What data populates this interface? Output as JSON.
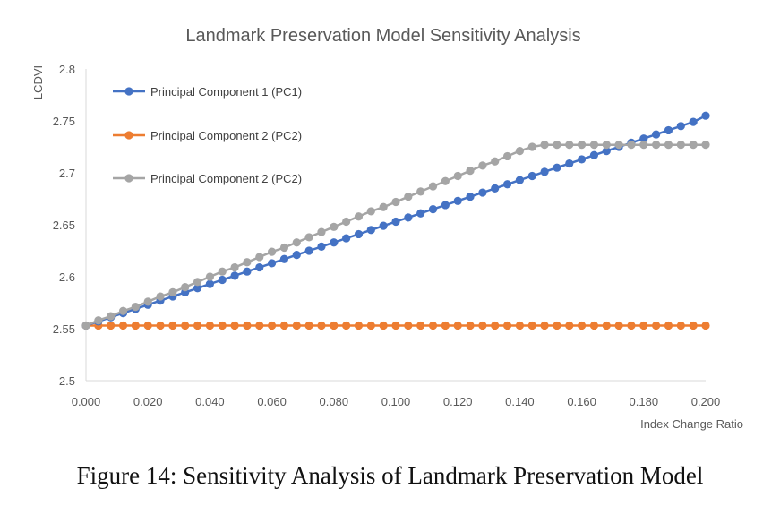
{
  "chart_data": {
    "type": "line",
    "title": "Landmark Preservation Model Sensitivity Analysis",
    "xlabel": "Index Change Ratio",
    "ylabel": "LCDVI",
    "xlim": [
      0,
      0.2
    ],
    "ylim": [
      2.5,
      2.8
    ],
    "xticks": [
      "0.000",
      "0.020",
      "0.040",
      "0.060",
      "0.080",
      "0.100",
      "0.120",
      "0.140",
      "0.160",
      "0.180",
      "0.200"
    ],
    "yticks": [
      "2.5",
      "2.55",
      "2.6",
      "2.65",
      "2.7",
      "2.75",
      "2.8"
    ],
    "grid": false,
    "legend": "top-left",
    "x": [
      0.0,
      0.004,
      0.008,
      0.012,
      0.016,
      0.02,
      0.024,
      0.028,
      0.032,
      0.036,
      0.04,
      0.044,
      0.048,
      0.052,
      0.056,
      0.06,
      0.064,
      0.068,
      0.072,
      0.076,
      0.08,
      0.084,
      0.088,
      0.092,
      0.096,
      0.1,
      0.104,
      0.108,
      0.112,
      0.116,
      0.12,
      0.124,
      0.128,
      0.132,
      0.136,
      0.14,
      0.144,
      0.148,
      0.152,
      0.156,
      0.16,
      0.164,
      0.168,
      0.172,
      0.176,
      0.18,
      0.184,
      0.188,
      0.192,
      0.196,
      0.2
    ],
    "series": [
      {
        "name": "Principal Component 1 (PC1)",
        "color": "#4472C4",
        "values": [
          2.553,
          2.557,
          2.561,
          2.565,
          2.569,
          2.573,
          2.577,
          2.581,
          2.585,
          2.589,
          2.593,
          2.597,
          2.601,
          2.605,
          2.609,
          2.613,
          2.617,
          2.621,
          2.625,
          2.629,
          2.633,
          2.637,
          2.641,
          2.645,
          2.649,
          2.653,
          2.657,
          2.661,
          2.665,
          2.669,
          2.673,
          2.677,
          2.681,
          2.685,
          2.689,
          2.693,
          2.697,
          2.701,
          2.705,
          2.709,
          2.713,
          2.717,
          2.721,
          2.725,
          2.729,
          2.733,
          2.737,
          2.741,
          2.745,
          2.749,
          2.755
        ]
      },
      {
        "name": "Principal Component 2 (PC2)",
        "color": "#ED7D31",
        "values": [
          2.553,
          2.553,
          2.553,
          2.553,
          2.553,
          2.553,
          2.553,
          2.553,
          2.553,
          2.553,
          2.553,
          2.553,
          2.553,
          2.553,
          2.553,
          2.553,
          2.553,
          2.553,
          2.553,
          2.553,
          2.553,
          2.553,
          2.553,
          2.553,
          2.553,
          2.553,
          2.553,
          2.553,
          2.553,
          2.553,
          2.553,
          2.553,
          2.553,
          2.553,
          2.553,
          2.553,
          2.553,
          2.553,
          2.553,
          2.553,
          2.553,
          2.553,
          2.553,
          2.553,
          2.553,
          2.553,
          2.553,
          2.553,
          2.553,
          2.553,
          2.553
        ]
      },
      {
        "name": "Principal Component 2 (PC2)",
        "color": "#A5A5A5",
        "values": [
          2.553,
          2.558,
          2.562,
          2.567,
          2.571,
          2.576,
          2.581,
          2.585,
          2.59,
          2.595,
          2.6,
          2.605,
          2.609,
          2.614,
          2.619,
          2.624,
          2.628,
          2.633,
          2.638,
          2.643,
          2.648,
          2.653,
          2.658,
          2.663,
          2.667,
          2.672,
          2.677,
          2.682,
          2.687,
          2.692,
          2.697,
          2.702,
          2.707,
          2.711,
          2.716,
          2.721,
          2.725,
          2.727,
          2.727,
          2.727,
          2.727,
          2.727,
          2.727,
          2.727,
          2.727,
          2.727,
          2.727,
          2.727,
          2.727,
          2.727,
          2.727
        ]
      }
    ]
  },
  "caption": "Figure 14:  Sensitivity Analysis of Landmark Preservation Model"
}
